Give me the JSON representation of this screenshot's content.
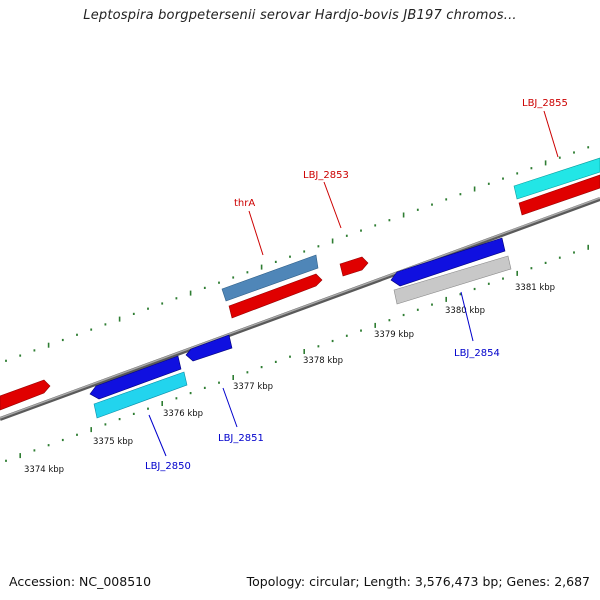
{
  "title": "Leptospira borgpetersenii serovar Hardjo-bovis JB197 chromos...",
  "footer": {
    "accession": "Accession: NC_008510",
    "summary": "Topology: circular; Length: 3,576,473 bp; Genes: 2,687"
  },
  "colors": {
    "forward_gene": "#ff0000",
    "reverse_gene": "#0000ff",
    "rna": "#4682b4",
    "cyan_feature": "#00ffff",
    "gray_feature": "#c0c0c0",
    "backbone": "#808080",
    "tick": "#2e7d32",
    "label_forward": "#cc0000",
    "label_reverse": "#0000cc"
  },
  "axis": {
    "kbp_labels": [
      "3374 kbp",
      "3375 kbp",
      "3376 kbp",
      "3377 kbp",
      "3378 kbp",
      "3379 kbp",
      "3380 kbp",
      "3381 kbp"
    ]
  },
  "gene_labels": [
    {
      "name": "LBJ_2855",
      "strand": "forward"
    },
    {
      "name": "LBJ_2853",
      "strand": "forward"
    },
    {
      "name": "thrA",
      "strand": "forward"
    },
    {
      "name": "LBJ_2854",
      "strand": "reverse"
    },
    {
      "name": "LBJ_2851",
      "strand": "reverse"
    },
    {
      "name": "LBJ_2850",
      "strand": "reverse"
    }
  ]
}
